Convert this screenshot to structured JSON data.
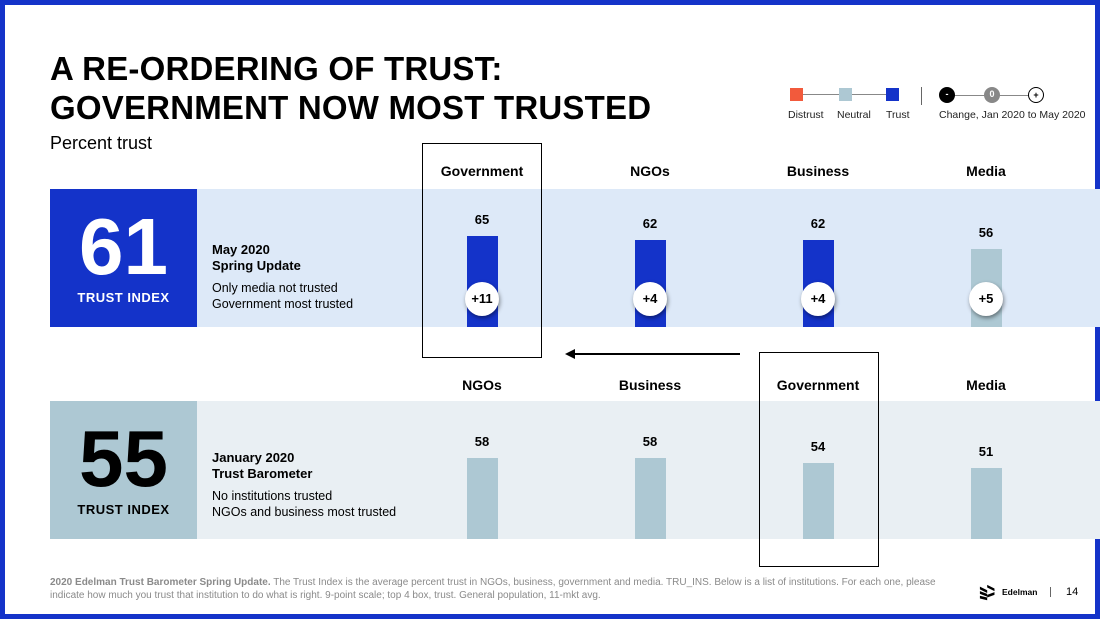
{
  "title_line1": "A RE-ORDERING OF TRUST:",
  "title_line2": "GOVERNMENT NOW MOST TRUSTED",
  "subtitle": "Percent trust",
  "legend": {
    "distrust": "Distrust",
    "neutral": "Neutral",
    "trust": "Trust",
    "minus": "-",
    "zero": "0",
    "plus": "+",
    "change": "Change, Jan 2020 to May 2020"
  },
  "colors": {
    "distrust": "#f25a3c",
    "neutral": "#adc8d3",
    "trust": "#1433c9",
    "minus_circle": "#000000",
    "zero_circle": "#888888"
  },
  "may": {
    "index": "61",
    "index_label": "TRUST INDEX",
    "heading1": "May 2020",
    "heading2": "Spring Update",
    "note1": "Only media not trusted",
    "note2": "Government most trusted"
  },
  "jan": {
    "index": "55",
    "index_label": "TRUST INDEX",
    "heading1": "January 2020",
    "heading2": "Trust Barometer",
    "note1": "No institutions trusted",
    "note2": "NGOs and business most trusted"
  },
  "chart_data": [
    {
      "type": "bar",
      "categories": [
        "Government",
        "NGOs",
        "Business",
        "Media"
      ],
      "values": [
        65,
        62,
        62,
        56
      ],
      "levels": [
        "trust",
        "trust",
        "trust",
        "neutral"
      ],
      "change_labels": [
        "+11",
        "+4",
        "+4",
        "+5"
      ]
    },
    {
      "type": "bar",
      "categories": [
        "NGOs",
        "Business",
        "Government",
        "Media"
      ],
      "values": [
        58,
        58,
        54,
        51
      ],
      "levels": [
        "neutral",
        "neutral",
        "neutral",
        "neutral"
      ]
    }
  ],
  "footnote_bold": "2020 Edelman Trust Barometer Spring Update.",
  "footnote_text": " The Trust Index is the average percent trust in NGOs, business, government and media. TRU_INS. Below is a list of institutions. For each one, please indicate how much you trust that institution to do what is right. 9-point scale; top 4 box, trust. General population, 11-mkt avg.",
  "brand": "Edelman",
  "page_number": "14"
}
